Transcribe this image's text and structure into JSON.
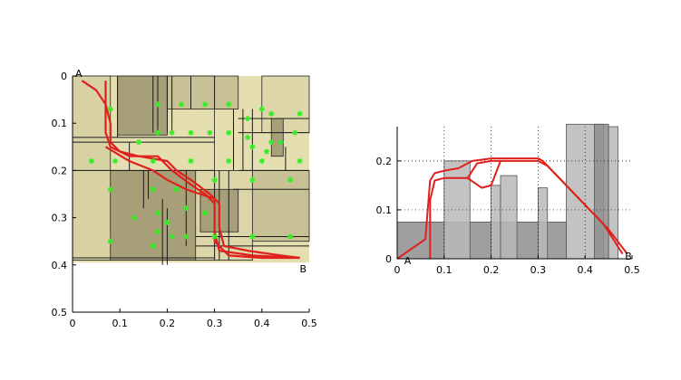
{
  "chart_data": [
    {
      "type": "scatter",
      "panel": "map-top-view",
      "xlim": [
        0,
        0.5
      ],
      "ylim": [
        0,
        0.5
      ],
      "y_reversed": true,
      "x_ticks": [
        "0",
        "0.1",
        "0.2",
        "0.3",
        "0.4",
        "0.5"
      ],
      "y_ticks": [
        "0",
        "0.1",
        "0.2",
        "0.3",
        "0.4",
        "0.5"
      ],
      "grid": false,
      "point_labels": {
        "start": "A",
        "end": "B"
      },
      "colors": {
        "background": "#e4deb0",
        "obstacle": "#a79f78",
        "wall": "#1a1a1a",
        "path": "#e0201c",
        "sample": "#33ee22"
      },
      "obstacles": [
        {
          "x0": 0.0,
          "x1": 0.3,
          "y0": 0.0,
          "y1": 0.39
        },
        {
          "x0": 0.095,
          "x1": 0.2,
          "y0": 0.0,
          "y1": 0.125
        },
        {
          "x0": 0.2,
          "x1": 0.35,
          "y0": 0.0,
          "y1": 0.07
        },
        {
          "x0": 0.0,
          "x1": 0.29,
          "y0": 0.2,
          "y1": 0.39
        },
        {
          "x0": 0.34,
          "x1": 0.5,
          "y0": 0.2,
          "y1": 0.35
        },
        {
          "x0": 0.26,
          "x1": 0.38,
          "y0": 0.2,
          "y1": 0.39
        },
        {
          "x0": 0.27,
          "x1": 0.35,
          "y0": 0.24,
          "y1": 0.33
        },
        {
          "x0": 0.4,
          "x1": 0.5,
          "y0": 0.0,
          "y1": 0.12
        },
        {
          "x0": 0.42,
          "x1": 0.445,
          "y0": 0.09,
          "y1": 0.17
        },
        {
          "x0": 0.0,
          "x1": 0.08,
          "y0": 0.0,
          "y1": 0.39
        }
      ],
      "paths": [
        [
          [
            0.02,
            0.01
          ],
          [
            0.05,
            0.03
          ],
          [
            0.07,
            0.06
          ],
          [
            0.08,
            0.1
          ],
          [
            0.08,
            0.14
          ],
          [
            0.1,
            0.16
          ],
          [
            0.14,
            0.17
          ],
          [
            0.2,
            0.18
          ],
          [
            0.22,
            0.2
          ],
          [
            0.25,
            0.22
          ],
          [
            0.29,
            0.25
          ],
          [
            0.31,
            0.27
          ],
          [
            0.31,
            0.32
          ],
          [
            0.32,
            0.36
          ],
          [
            0.37,
            0.37
          ],
          [
            0.44,
            0.38
          ],
          [
            0.48,
            0.385
          ]
        ],
        [
          [
            0.07,
            0.01
          ],
          [
            0.07,
            0.06
          ],
          [
            0.07,
            0.12
          ],
          [
            0.08,
            0.15
          ],
          [
            0.12,
            0.17
          ],
          [
            0.18,
            0.17
          ],
          [
            0.21,
            0.2
          ],
          [
            0.25,
            0.23
          ],
          [
            0.28,
            0.25
          ],
          [
            0.3,
            0.27
          ],
          [
            0.3,
            0.33
          ],
          [
            0.31,
            0.37
          ],
          [
            0.38,
            0.38
          ],
          [
            0.48,
            0.385
          ]
        ],
        [
          [
            0.07,
            0.15
          ],
          [
            0.12,
            0.18
          ],
          [
            0.17,
            0.2
          ],
          [
            0.2,
            0.22
          ],
          [
            0.24,
            0.24
          ],
          [
            0.3,
            0.26
          ],
          [
            0.3,
            0.35
          ],
          [
            0.33,
            0.38
          ],
          [
            0.4,
            0.385
          ],
          [
            0.48,
            0.385
          ]
        ]
      ],
      "samples": [
        [
          0.08,
          0.07
        ],
        [
          0.18,
          0.06
        ],
        [
          0.23,
          0.06
        ],
        [
          0.28,
          0.06
        ],
        [
          0.33,
          0.06
        ],
        [
          0.37,
          0.09
        ],
        [
          0.4,
          0.07
        ],
        [
          0.42,
          0.08
        ],
        [
          0.48,
          0.08
        ],
        [
          0.37,
          0.13
        ],
        [
          0.42,
          0.14
        ],
        [
          0.44,
          0.14
        ],
        [
          0.47,
          0.12
        ],
        [
          0.18,
          0.12
        ],
        [
          0.21,
          0.12
        ],
        [
          0.25,
          0.12
        ],
        [
          0.29,
          0.12
        ],
        [
          0.33,
          0.12
        ],
        [
          0.14,
          0.14
        ],
        [
          0.38,
          0.15
        ],
        [
          0.41,
          0.16
        ],
        [
          0.04,
          0.18
        ],
        [
          0.09,
          0.18
        ],
        [
          0.17,
          0.18
        ],
        [
          0.25,
          0.18
        ],
        [
          0.33,
          0.18
        ],
        [
          0.4,
          0.18
        ],
        [
          0.48,
          0.18
        ],
        [
          0.08,
          0.24
        ],
        [
          0.17,
          0.24
        ],
        [
          0.22,
          0.24
        ],
        [
          0.3,
          0.22
        ],
        [
          0.38,
          0.22
        ],
        [
          0.46,
          0.22
        ],
        [
          0.13,
          0.3
        ],
        [
          0.18,
          0.29
        ],
        [
          0.2,
          0.31
        ],
        [
          0.24,
          0.28
        ],
        [
          0.28,
          0.29
        ],
        [
          0.18,
          0.33
        ],
        [
          0.21,
          0.34
        ],
        [
          0.24,
          0.34
        ],
        [
          0.3,
          0.34
        ],
        [
          0.38,
          0.34
        ],
        [
          0.46,
          0.34
        ],
        [
          0.08,
          0.35
        ],
        [
          0.17,
          0.36
        ]
      ]
    },
    {
      "type": "area",
      "panel": "profile-side-view",
      "xlim": [
        0,
        0.5
      ],
      "ylim": [
        0,
        0.27
      ],
      "x_ticks": [
        "0",
        "0.1",
        "0.2",
        "0.3",
        "0.4",
        "0.5"
      ],
      "y_ticks": [
        "0",
        "0.1",
        "0.2"
      ],
      "grid": true,
      "point_labels": {
        "start": "A",
        "end": "B"
      },
      "colors": {
        "block_dark": "#8e8e8e",
        "block_light": "#b9b9b9",
        "path": "#e0201c"
      },
      "blocks": [
        {
          "x0": 0.0,
          "x1": 0.36,
          "height": 0.075,
          "shade": "dark"
        },
        {
          "x0": 0.1,
          "x1": 0.155,
          "height": 0.2,
          "shade": "light"
        },
        {
          "x0": 0.2,
          "x1": 0.22,
          "height": 0.15,
          "shade": "light"
        },
        {
          "x0": 0.22,
          "x1": 0.255,
          "height": 0.17,
          "shade": "light"
        },
        {
          "x0": 0.3,
          "x1": 0.32,
          "height": 0.145,
          "shade": "light"
        },
        {
          "x0": 0.36,
          "x1": 0.44,
          "height": 0.275,
          "shade": "light"
        },
        {
          "x0": 0.42,
          "x1": 0.45,
          "height": 0.275,
          "shade": "dark"
        },
        {
          "x0": 0.45,
          "x1": 0.47,
          "height": 0.27,
          "shade": "light"
        }
      ],
      "paths": [
        [
          [
            0.0,
            0.0
          ],
          [
            0.03,
            0.02
          ],
          [
            0.06,
            0.04
          ],
          [
            0.065,
            0.1
          ],
          [
            0.07,
            0.16
          ],
          [
            0.08,
            0.175
          ],
          [
            0.1,
            0.18
          ],
          [
            0.13,
            0.185
          ],
          [
            0.16,
            0.2
          ],
          [
            0.2,
            0.205
          ],
          [
            0.3,
            0.205
          ],
          [
            0.31,
            0.2
          ],
          [
            0.35,
            0.16
          ],
          [
            0.4,
            0.11
          ],
          [
            0.45,
            0.06
          ],
          [
            0.49,
            0.01
          ]
        ],
        [
          [
            0.07,
            0.0
          ],
          [
            0.07,
            0.12
          ],
          [
            0.08,
            0.16
          ],
          [
            0.1,
            0.165
          ],
          [
            0.15,
            0.165
          ],
          [
            0.17,
            0.195
          ],
          [
            0.2,
            0.2
          ],
          [
            0.3,
            0.2
          ],
          [
            0.32,
            0.19
          ],
          [
            0.38,
            0.13
          ],
          [
            0.44,
            0.07
          ],
          [
            0.48,
            0.01
          ]
        ],
        [
          [
            0.15,
            0.165
          ],
          [
            0.18,
            0.145
          ],
          [
            0.2,
            0.15
          ],
          [
            0.22,
            0.2
          ]
        ]
      ]
    }
  ]
}
